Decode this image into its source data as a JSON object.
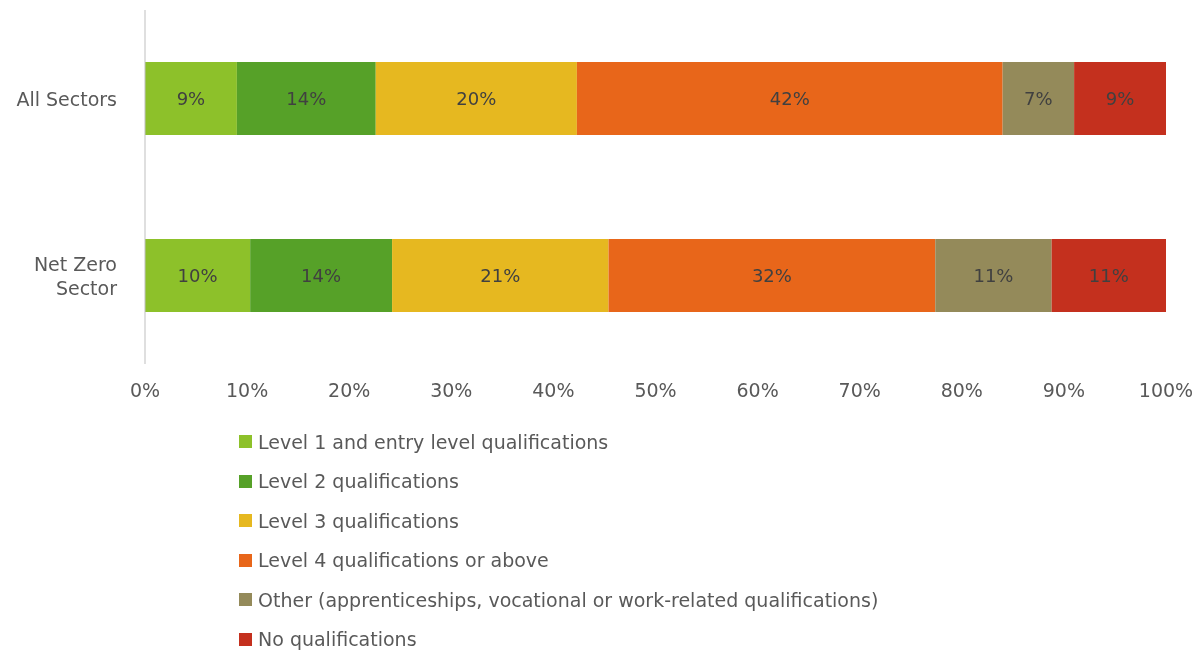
{
  "chart_data": {
    "type": "bar",
    "orientation": "horizontal",
    "stacked": true,
    "categories": [
      "All Sectors",
      "Net Zero Sector"
    ],
    "series": [
      {
        "name": "Level 1 and entry level qualifications",
        "color": "#8dc12a",
        "values": [
          9.0,
          10.3
        ],
        "value_labels": [
          "9%",
          "10%"
        ]
      },
      {
        "name": "Level 2 qualifications",
        "color": "#56a128",
        "values": [
          13.6,
          13.9
        ],
        "value_labels": [
          "14%",
          "14%"
        ]
      },
      {
        "name": "Level 3 qualifications",
        "color": "#e6b820",
        "values": [
          19.7,
          21.2
        ],
        "value_labels": [
          "20%",
          "21%"
        ]
      },
      {
        "name": "Level 4 qualifications or above",
        "color": "#e8661a",
        "values": [
          41.7,
          32.0
        ],
        "value_labels": [
          "42%",
          "32%"
        ]
      },
      {
        "name": "Other (apprenticeships, vocational or work-related qualifications)",
        "color": "#948a5a",
        "values": [
          7.0,
          11.4
        ],
        "value_labels": [
          "7%",
          "11%"
        ]
      },
      {
        "name": "No qualifications",
        "color": "#c4301e",
        "values": [
          9.0,
          11.2
        ],
        "value_labels": [
          "9%",
          "11%"
        ]
      }
    ],
    "xlim": [
      0,
      100
    ],
    "xticks": [
      {
        "value": 0,
        "label": "0%"
      },
      {
        "value": 10,
        "label": "10%"
      },
      {
        "value": 20,
        "label": "20%"
      },
      {
        "value": 30,
        "label": "30%"
      },
      {
        "value": 40,
        "label": "40%"
      },
      {
        "value": 50,
        "label": "50%"
      },
      {
        "value": 60,
        "label": "60%"
      },
      {
        "value": 70,
        "label": "70%"
      },
      {
        "value": 80,
        "label": "80%"
      },
      {
        "value": 90,
        "label": "90%"
      },
      {
        "value": 100,
        "label": "100%"
      }
    ],
    "grid": false,
    "legend": "bottom"
  }
}
